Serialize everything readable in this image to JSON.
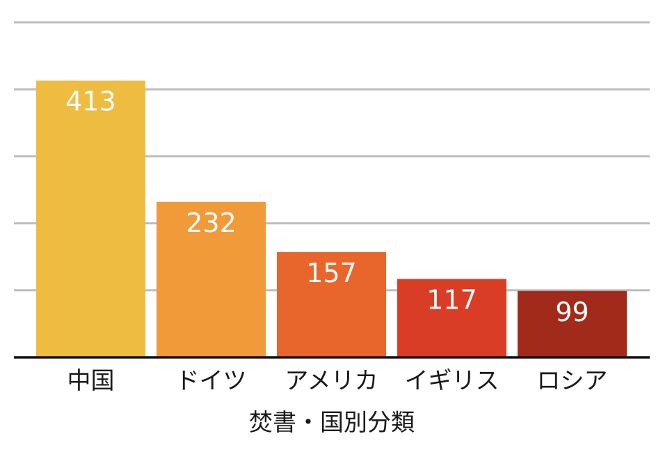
{
  "chart_data": {
    "type": "bar",
    "categories": [
      "中国",
      "ドイツ",
      "アメリカ",
      "イギリス",
      "ロシア"
    ],
    "values": [
      413,
      232,
      157,
      117,
      99
    ],
    "colors": [
      "#EEBC41",
      "#F09A3A",
      "#E8652C",
      "#D93D26",
      "#A22A1B"
    ],
    "xlabel": "焚書・国別分類",
    "ylabel": "",
    "ylim": [
      0,
      500
    ],
    "grid": true,
    "gridlines": [
      100,
      200,
      300,
      400,
      500
    ],
    "data_labels": true,
    "legend": "none"
  }
}
